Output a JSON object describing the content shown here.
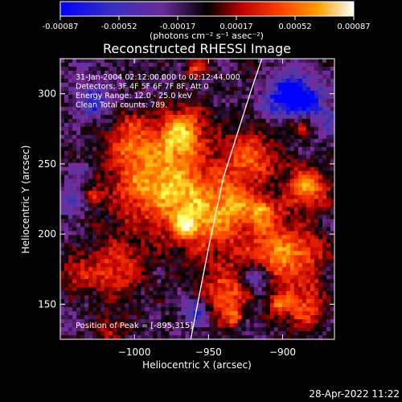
{
  "colorbar": {
    "tick_labels": [
      "-0.00087",
      "-0.00052",
      "-0.00017",
      "0.00017",
      "0.00052",
      "0.00087"
    ],
    "units_label": "(photons cm⁻² s⁻¹ asec⁻²)"
  },
  "chart_data": {
    "type": "heatmap",
    "title": "Reconstructed RHESSI Image",
    "xlabel": "Heliocentric X (arcsec)",
    "ylabel": "Heliocentric Y (arcsec)",
    "xlim": [
      -1050,
      -865
    ],
    "ylim": [
      125,
      325
    ],
    "x_ticks": [
      -1000,
      -950,
      -900
    ],
    "x_tick_labels": [
      "−1000",
      "−950",
      "−900"
    ],
    "y_ticks": [
      150,
      200,
      250,
      300
    ],
    "y_tick_labels": [
      "150",
      "200",
      "250",
      "300"
    ],
    "color_range": [
      -0.00087,
      0.00087
    ],
    "colormap": [
      "#0000ff",
      "#4a3aa8",
      "#7a2a9a",
      "#000000",
      "#b80000",
      "#ff3a00",
      "#ff9a00",
      "#ffff50",
      "#ffffff"
    ],
    "limb_line": [
      [
        -962,
        125
      ],
      [
        -950,
        190
      ],
      [
        -940,
        240
      ],
      [
        -922,
        300
      ],
      [
        -914,
        325
      ]
    ],
    "annotations": [
      "31-Jan-2004 02:12:00.000 to 02:12:44.000",
      "Detectors: 3F 4F 5F 6F 7F 8F, Att 0",
      "Energy Range: 12.0 - 25.0 keV",
      "Clean     Total counts: 789."
    ],
    "peak_label": "Position of Peak = [-895,315]",
    "peak_position": [
      -895,
      315
    ]
  },
  "footer": {
    "date": "28-Apr-2022 11:22"
  }
}
